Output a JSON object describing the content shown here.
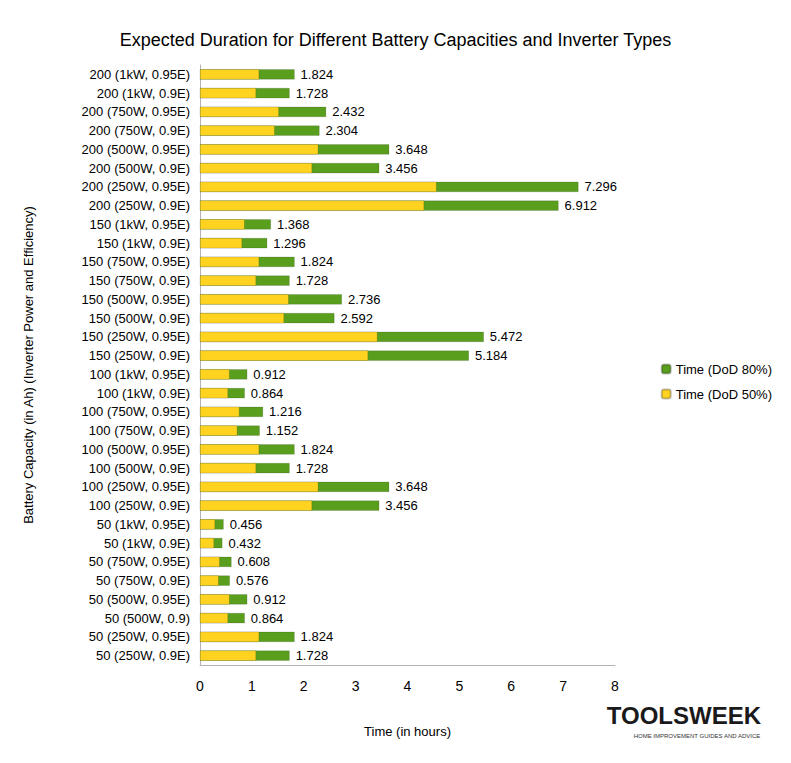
{
  "chart_data": {
    "type": "bar",
    "title": "Expected Duration for Different Battery Capacities and Inverter Types",
    "x_label": "Time (in hours)",
    "y_label": "Battery Capacity (in Ah) (Inverter Power and Efficiency)",
    "orientation": "horizontal",
    "categories": [
      "200 (1kW, 0.95E)",
      "200 (1kW, 0.9E)",
      "200 (750W, 0.95E)",
      "200 (750W, 0.9E)",
      "200 (500W, 0.95E)",
      "200 (500W, 0.9E)",
      "200 (250W, 0.95E)",
      "200 (250W, 0.9E)",
      "150 (1kW, 0.95E)",
      "150 (1kW, 0.9E)",
      "150 (750W, 0.95E)",
      "150 (750W, 0.9E)",
      "150 (500W, 0.95E)",
      "150 (500W, 0.9E)",
      "150 (250W, 0.95E)",
      "150 (250W, 0.9E)",
      "100 (1kW, 0.95E)",
      "100 (1kW, 0.9E)",
      "100 (750W, 0.95E)",
      "100 (750W, 0.9E)",
      "100 (500W, 0.95E)",
      "100 (500W, 0.9E)",
      "100 (250W, 0.95E)",
      "100 (250W, 0.9E)",
      "50 (1kW, 0.95E)",
      "50 (1kW, 0.9E)",
      "50 (750W, 0.95E)",
      "50 (750W, 0.9E)",
      "50 (500W, 0.95E)",
      "50 (500W, 0.9)",
      "50 (250W, 0.95E)",
      "50 (250W, 0.9E)"
    ],
    "series": [
      {
        "name": "Time (DoD 80%)",
        "color": "#5a9e1e",
        "data_labels": true,
        "values": [
          1.824,
          1.728,
          2.432,
          2.304,
          3.648,
          3.456,
          7.296,
          6.912,
          1.368,
          1.296,
          1.824,
          1.728,
          2.736,
          2.592,
          5.472,
          5.184,
          0.912,
          0.864,
          1.216,
          1.152,
          1.824,
          1.728,
          3.648,
          3.456,
          0.456,
          0.432,
          0.608,
          0.576,
          0.912,
          0.864,
          1.824,
          1.728
        ]
      },
      {
        "name": "Time (DoD 50%)",
        "color": "#ffd320",
        "values": [
          1.14,
          1.08,
          1.52,
          1.44,
          2.28,
          2.16,
          4.56,
          4.32,
          0.86,
          0.81,
          1.14,
          1.08,
          1.71,
          1.62,
          3.42,
          3.24,
          0.57,
          0.54,
          0.76,
          0.72,
          1.14,
          1.08,
          2.28,
          2.16,
          0.29,
          0.27,
          0.38,
          0.36,
          0.57,
          0.54,
          1.14,
          1.08
        ]
      }
    ],
    "xlim": [
      0,
      8
    ],
    "xticks": [
      0,
      1,
      2,
      3,
      4,
      5,
      6,
      7,
      8
    ],
    "grid": false,
    "legend": "right",
    "annotations": [
      "TOOLSWEEK",
      "HOME IMPROVEMENT GUIDES AND ADVICE"
    ]
  }
}
